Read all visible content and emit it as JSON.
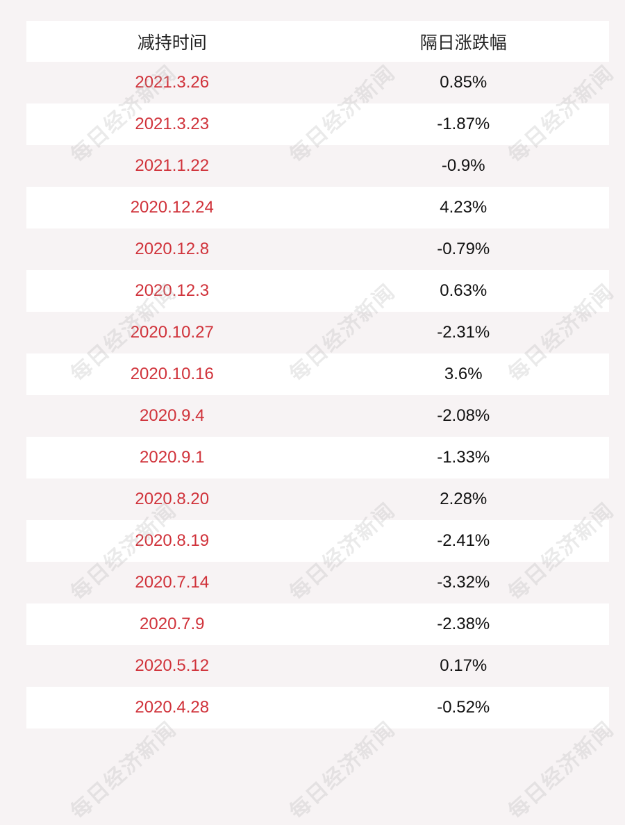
{
  "table": {
    "header": [
      "减持时间",
      "隔日涨跌幅"
    ],
    "rows": [
      [
        "2021.3.26",
        "0.85%"
      ],
      [
        "2021.3.23",
        "-1.87%"
      ],
      [
        "2021.1.22",
        "-0.9%"
      ],
      [
        "2020.12.24",
        "4.23%"
      ],
      [
        "2020.12.8",
        "-0.79%"
      ],
      [
        "2020.12.3",
        "0.63%"
      ],
      [
        "2020.10.27",
        "-2.31%"
      ],
      [
        "2020.10.16",
        "3.6%"
      ],
      [
        "2020.9.4",
        "-2.08%"
      ],
      [
        "2020.9.1",
        "-1.33%"
      ],
      [
        "2020.8.20",
        "2.28%"
      ],
      [
        "2020.8.19",
        "-2.41%"
      ],
      [
        "2020.7.14",
        "-3.32%"
      ],
      [
        "2020.7.9",
        "-2.38%"
      ],
      [
        "2020.5.12",
        "0.17%"
      ],
      [
        "2020.4.28",
        "-0.52%"
      ]
    ]
  },
  "watermark": "每日经济新闻"
}
